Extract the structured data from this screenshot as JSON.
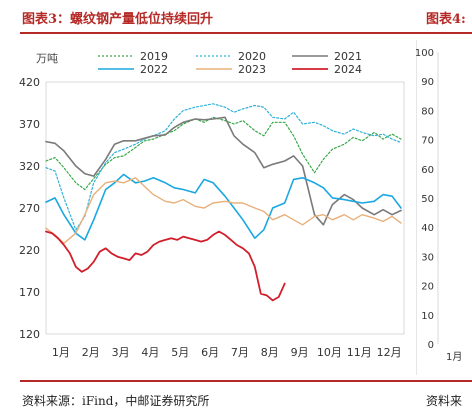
{
  "header": {
    "title": "图表3：螺纹钢产量低位持续回升",
    "next_title": "图表4:"
  },
  "footer": {
    "source": "资料来源：iFind，中邮证券研究所",
    "next_source": "资料来"
  },
  "chart_data": {
    "type": "line",
    "unit_label": "万吨",
    "ylim": [
      120,
      420
    ],
    "yticks": [
      120,
      170,
      220,
      270,
      320,
      370,
      420
    ],
    "categories": [
      "1月",
      "2月",
      "3月",
      "4月",
      "5月",
      "6月",
      "7月",
      "8月",
      "9月",
      "10月",
      "11月",
      "12月"
    ],
    "xlim": [
      1,
      13
    ],
    "legend_position": "top",
    "series": [
      {
        "name": "2019",
        "color": "#3aa84a",
        "dash": "2,2",
        "width": 1.2,
        "x": [
          1.0,
          1.3,
          1.6,
          2.0,
          2.3,
          2.6,
          3.0,
          3.3,
          3.6,
          4.0,
          4.3,
          4.6,
          5.0,
          5.3,
          5.6,
          6.0,
          6.3,
          6.6,
          7.0,
          7.3,
          7.6,
          8.0,
          8.3,
          8.6,
          9.0,
          9.3,
          9.6,
          10.0,
          10.3,
          10.6,
          11.0,
          11.3,
          11.6,
          12.0,
          12.3,
          12.6,
          12.9
        ],
        "values": [
          326,
          330,
          318,
          300,
          292,
          305,
          322,
          330,
          332,
          342,
          350,
          352,
          358,
          362,
          370,
          376,
          372,
          378,
          374,
          370,
          374,
          362,
          356,
          372,
          372,
          356,
          334,
          312,
          328,
          340,
          346,
          354,
          350,
          360,
          352,
          358,
          352
        ]
      },
      {
        "name": "2020",
        "color": "#2fb0d8",
        "dash": "2,2",
        "width": 1.2,
        "x": [
          1.0,
          1.3,
          1.6,
          2.0,
          2.3,
          2.6,
          3.0,
          3.3,
          3.6,
          4.0,
          4.3,
          4.6,
          5.0,
          5.3,
          5.6,
          6.0,
          6.3,
          6.6,
          7.0,
          7.3,
          7.6,
          8.0,
          8.3,
          8.6,
          9.0,
          9.3,
          9.6,
          10.0,
          10.3,
          10.6,
          11.0,
          11.3,
          11.6,
          12.0,
          12.3,
          12.6,
          12.9
        ],
        "values": [
          318,
          314,
          282,
          244,
          260,
          300,
          324,
          336,
          340,
          346,
          352,
          356,
          362,
          376,
          386,
          390,
          392,
          394,
          390,
          384,
          388,
          392,
          390,
          378,
          376,
          384,
          370,
          372,
          368,
          362,
          358,
          364,
          360,
          356,
          358,
          352,
          348
        ]
      },
      {
        "name": "2021",
        "color": "#7a7a7a",
        "dash": "",
        "width": 1.6,
        "x": [
          1.0,
          1.3,
          1.6,
          2.0,
          2.3,
          2.6,
          3.0,
          3.3,
          3.6,
          4.0,
          4.3,
          4.6,
          5.0,
          5.3,
          5.6,
          6.0,
          6.3,
          6.6,
          7.0,
          7.3,
          7.6,
          8.0,
          8.3,
          8.6,
          9.0,
          9.3,
          9.6,
          10.0,
          10.3,
          10.6,
          11.0,
          11.3,
          11.6,
          12.0,
          12.3,
          12.6,
          12.9
        ],
        "values": [
          349,
          347,
          338,
          320,
          311,
          308,
          328,
          346,
          350,
          350,
          353,
          356,
          357,
          366,
          372,
          376,
          375,
          376,
          378,
          356,
          346,
          336,
          318,
          322,
          326,
          332,
          320,
          262,
          250,
          274,
          286,
          280,
          270,
          262,
          268,
          262,
          267
        ]
      },
      {
        "name": "2022",
        "color": "#1aa8e0",
        "dash": "",
        "width": 1.6,
        "x": [
          1.0,
          1.3,
          1.6,
          2.0,
          2.3,
          2.6,
          3.0,
          3.3,
          3.6,
          4.0,
          4.3,
          4.6,
          5.0,
          5.3,
          5.6,
          6.0,
          6.3,
          6.6,
          7.0,
          7.3,
          7.6,
          8.0,
          8.3,
          8.6,
          9.0,
          9.3,
          9.6,
          10.0,
          10.3,
          10.6,
          11.0,
          11.3,
          11.6,
          12.0,
          12.3,
          12.6,
          12.9
        ],
        "values": [
          277,
          282,
          262,
          240,
          232,
          256,
          292,
          300,
          310,
          300,
          302,
          306,
          300,
          294,
          292,
          288,
          304,
          300,
          284,
          270,
          256,
          234,
          244,
          270,
          276,
          304,
          306,
          300,
          294,
          282,
          280,
          278,
          276,
          278,
          286,
          284,
          270
        ]
      },
      {
        "name": "2023",
        "color": "#e8b07a",
        "dash": "",
        "width": 1.4,
        "x": [
          1.0,
          1.3,
          1.6,
          2.0,
          2.3,
          2.6,
          3.0,
          3.3,
          3.6,
          4.0,
          4.3,
          4.6,
          5.0,
          5.3,
          5.6,
          6.0,
          6.3,
          6.6,
          7.0,
          7.3,
          7.6,
          8.0,
          8.3,
          8.6,
          9.0,
          9.3,
          9.6,
          10.0,
          10.3,
          10.6,
          11.0,
          11.3,
          11.6,
          12.0,
          12.3,
          12.6,
          12.9
        ],
        "values": [
          246,
          238,
          228,
          240,
          262,
          286,
          300,
          302,
          300,
          306,
          296,
          286,
          278,
          276,
          280,
          272,
          270,
          276,
          278,
          276,
          276,
          270,
          266,
          256,
          262,
          256,
          250,
          260,
          262,
          256,
          262,
          256,
          262,
          258,
          254,
          260,
          252
        ]
      },
      {
        "name": "2024",
        "color": "#d11f2b",
        "dash": "",
        "width": 1.8,
        "x": [
          1.0,
          1.2,
          1.4,
          1.6,
          1.8,
          2.0,
          2.2,
          2.4,
          2.6,
          2.8,
          3.0,
          3.2,
          3.4,
          3.6,
          3.8,
          4.0,
          4.2,
          4.4,
          4.6,
          4.8,
          5.0,
          5.2,
          5.4,
          5.6,
          5.8,
          6.0,
          6.2,
          6.4,
          6.6,
          6.8,
          7.0,
          7.2,
          7.4,
          7.6,
          7.8,
          8.0,
          8.2,
          8.4,
          8.6,
          8.8,
          9.0
        ],
        "values": [
          242,
          240,
          234,
          226,
          216,
          200,
          194,
          198,
          206,
          218,
          222,
          216,
          212,
          210,
          208,
          216,
          214,
          218,
          226,
          230,
          232,
          234,
          232,
          236,
          234,
          232,
          230,
          232,
          238,
          242,
          238,
          232,
          226,
          222,
          216,
          200,
          168,
          166,
          160,
          164,
          180
        ]
      }
    ]
  }
}
